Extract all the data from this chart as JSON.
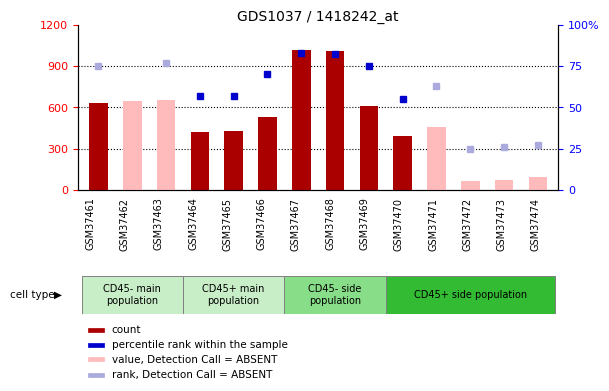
{
  "title": "GDS1037 / 1418242_at",
  "samples": [
    "GSM37461",
    "GSM37462",
    "GSM37463",
    "GSM37464",
    "GSM37465",
    "GSM37466",
    "GSM37467",
    "GSM37468",
    "GSM37469",
    "GSM37470",
    "GSM37471",
    "GSM37472",
    "GSM37473",
    "GSM37474"
  ],
  "count_present": [
    630,
    null,
    null,
    420,
    430,
    530,
    1020,
    1010,
    610,
    390,
    null,
    null,
    null,
    null
  ],
  "count_absent": [
    null,
    645,
    650,
    null,
    null,
    null,
    null,
    null,
    null,
    null,
    460,
    65,
    70,
    90
  ],
  "rank_present": [
    null,
    null,
    null,
    57,
    57,
    70,
    83,
    82,
    75,
    55,
    null,
    null,
    null,
    null
  ],
  "rank_absent": [
    75,
    null,
    77,
    null,
    null,
    null,
    null,
    null,
    null,
    null,
    63,
    25,
    26,
    27
  ],
  "group_data": [
    {
      "label": "CD45- main\npopulation",
      "start": 0,
      "end": 3,
      "color": "#c8eec8"
    },
    {
      "label": "CD45+ main\npopulation",
      "start": 3,
      "end": 6,
      "color": "#c8eec8"
    },
    {
      "label": "CD45- side\npopulation",
      "start": 6,
      "end": 9,
      "color": "#88dd88"
    },
    {
      "label": "CD45+ side population",
      "start": 9,
      "end": 14,
      "color": "#33bb33"
    }
  ],
  "ylim_left": [
    0,
    1200
  ],
  "ylim_right": [
    0,
    100
  ],
  "yticks_left": [
    0,
    300,
    600,
    900,
    1200
  ],
  "yticks_right": [
    0,
    25,
    50,
    75,
    100
  ],
  "bar_width": 0.55,
  "count_color": "#aa0000",
  "absent_count_color": "#ffbbbb",
  "rank_color": "#0000cc",
  "absent_rank_color": "#aaaadd",
  "legend_items": [
    {
      "label": "count",
      "color": "#aa0000"
    },
    {
      "label": "percentile rank within the sample",
      "color": "#0000cc"
    },
    {
      "label": "value, Detection Call = ABSENT",
      "color": "#ffbbbb"
    },
    {
      "label": "rank, Detection Call = ABSENT",
      "color": "#aaaadd"
    }
  ]
}
